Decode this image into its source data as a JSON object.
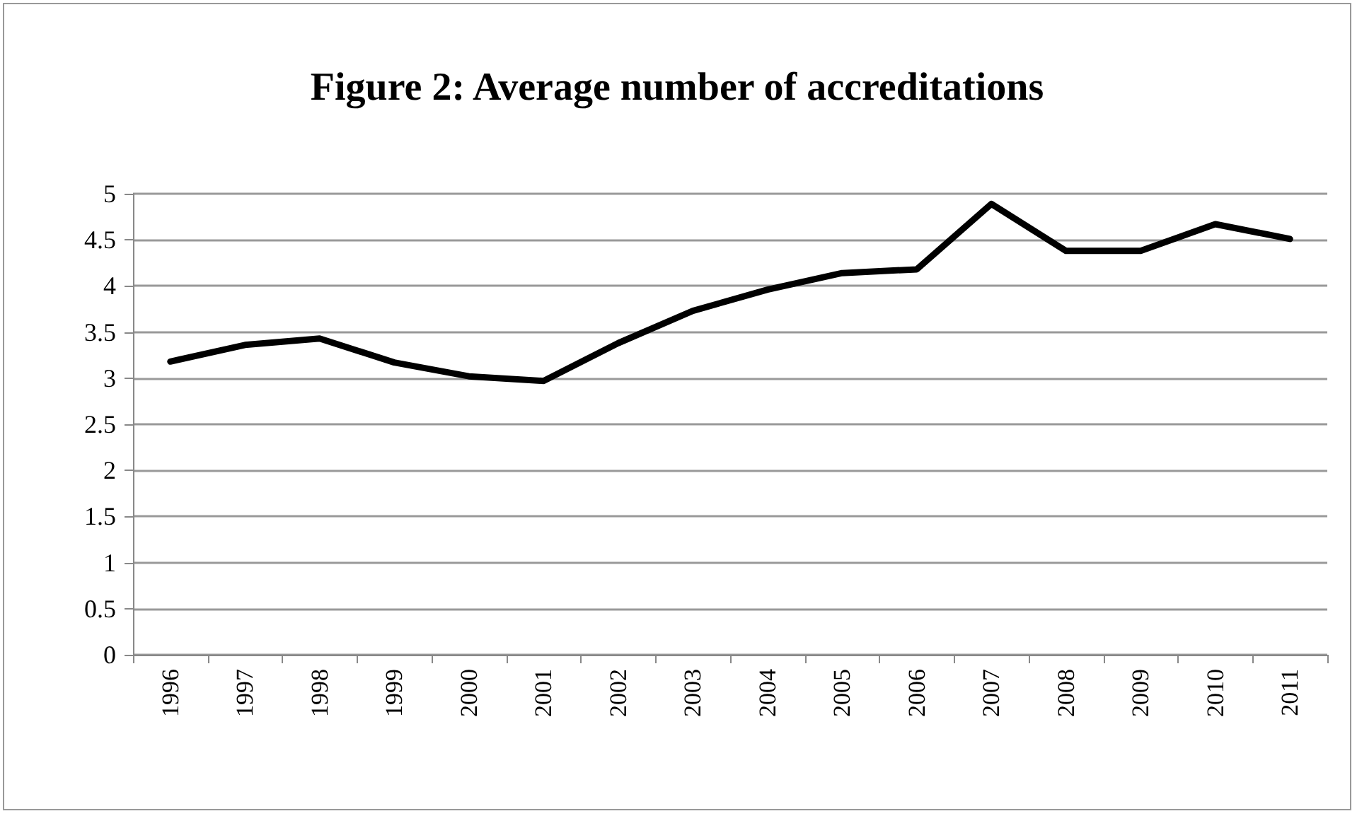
{
  "chart_data": {
    "type": "line",
    "title": "Figure 2: Average number of accreditations",
    "categories": [
      "1996",
      "1997",
      "1998",
      "1999",
      "2000",
      "2001",
      "2002",
      "2003",
      "2004",
      "2005",
      "2006",
      "2007",
      "2008",
      "2009",
      "2010",
      "2011"
    ],
    "series": [
      {
        "color": "#000000",
        "values": [
          3.18,
          3.36,
          3.43,
          3.17,
          3.02,
          2.97,
          3.38,
          3.73,
          3.96,
          4.14,
          4.18,
          4.89,
          4.38,
          4.38,
          4.67,
          4.51
        ]
      }
    ],
    "ylim": [
      0,
      5
    ],
    "yticks": [
      0,
      0.5,
      1,
      1.5,
      2,
      2.5,
      3,
      3.5,
      4,
      4.5,
      5
    ],
    "grid": "y",
    "marker": "none",
    "line_style": "solid"
  }
}
